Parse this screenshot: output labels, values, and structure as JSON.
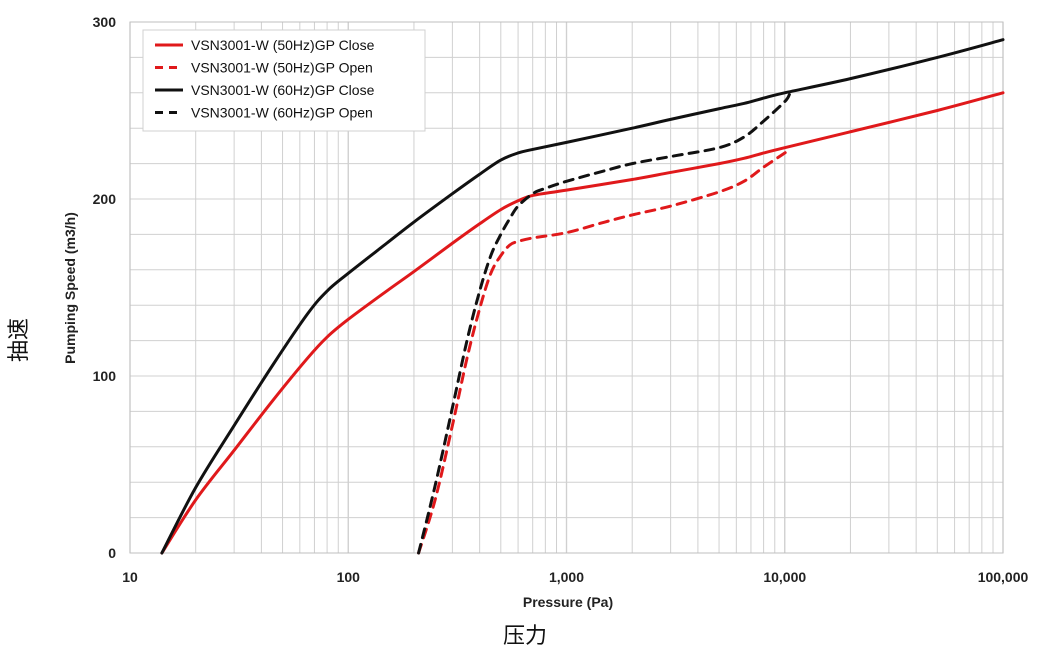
{
  "chart_data": {
    "type": "line",
    "xscale": "log",
    "xlim": [
      10,
      100000
    ],
    "ylim": [
      0,
      300
    ],
    "xticks": [
      "10",
      "100",
      "1,000",
      "10,000",
      "100,000"
    ],
    "yticks": [
      "0",
      "100",
      "200",
      "300"
    ],
    "xlabel": "Pressure (Pa)",
    "ylabel": "Pumping Speed (m3/h)",
    "xlabel_cn": "压力",
    "ylabel_cn": "抽速",
    "grid": true,
    "legend_position": "top-left",
    "series": [
      {
        "name": "VSN3001-W  (50Hz)GP Close",
        "color": "#e0191b",
        "dash": "solid",
        "x": [
          14,
          20,
          30,
          45,
          65,
          80,
          100,
          150,
          200,
          300,
          400,
          500,
          600,
          700,
          1000,
          2000,
          3000,
          5000,
          6500,
          8000,
          10000,
          20000,
          50000,
          100000
        ],
        "y": [
          0,
          30,
          58,
          86,
          110,
          122,
          132,
          148,
          159,
          175,
          186,
          194,
          199,
          202,
          205,
          211,
          215,
          220,
          223,
          226,
          229,
          238,
          250,
          260
        ]
      },
      {
        "name": "VSN3001-W  (50Hz)GP Open",
        "color": "#e0191b",
        "dash": "dashed",
        "x": [
          210,
          250,
          300,
          350,
          400,
          450,
          500,
          550,
          600,
          700,
          1000,
          1500,
          2000,
          3000,
          5000,
          6500,
          8000,
          10000,
          10500
        ],
        "y": [
          0,
          30,
          72,
          110,
          138,
          158,
          168,
          174,
          176,
          178,
          181,
          187,
          191,
          196,
          204,
          210,
          218,
          226,
          228
        ]
      },
      {
        "name": "VSN3001-W  (60Hz)GP Close",
        "color": "#111111",
        "dash": "solid",
        "x": [
          14,
          20,
          30,
          45,
          65,
          80,
          100,
          150,
          200,
          300,
          400,
          500,
          600,
          700,
          1000,
          2000,
          3000,
          5000,
          6500,
          8000,
          10000,
          20000,
          50000,
          100000
        ],
        "y": [
          0,
          37,
          72,
          106,
          135,
          148,
          158,
          175,
          187,
          203,
          214,
          222,
          226,
          228,
          232,
          240,
          245,
          251,
          254,
          257,
          260,
          268,
          280,
          290
        ]
      },
      {
        "name": "VSN3001-W  (60Hz)GP Open",
        "color": "#111111",
        "dash": "dashed",
        "x": [
          210,
          250,
          300,
          350,
          400,
          450,
          500,
          550,
          600,
          700,
          800,
          1000,
          1500,
          2000,
          3000,
          5000,
          6500,
          8000,
          10000,
          10500
        ],
        "y": [
          0,
          38,
          82,
          120,
          148,
          168,
          180,
          189,
          196,
          203,
          206,
          210,
          216,
          220,
          224,
          229,
          235,
          244,
          255,
          259
        ]
      }
    ]
  }
}
